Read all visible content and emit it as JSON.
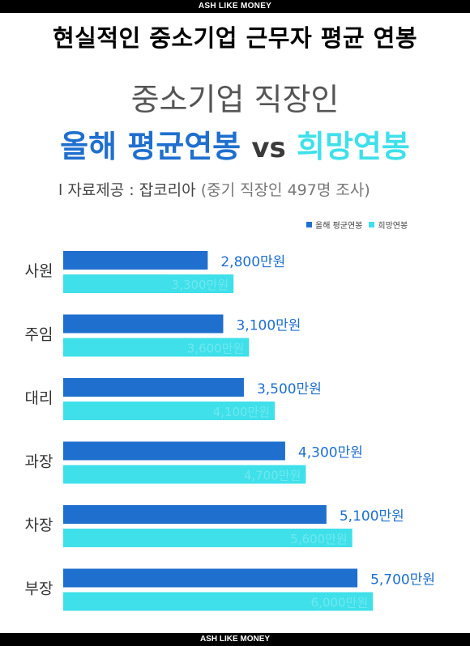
{
  "header": {
    "banner_top": "ASH LIKE MONEY",
    "headline": "현실적인 중소기업 근무자 평균 연봉"
  },
  "titles": {
    "line1": "중소기업 직장인",
    "line2_part1": "올해 평균연봉",
    "line2_vs": "vs",
    "line2_part2": "희망연봉",
    "source_main": "l 자료제공 : 잡코리아",
    "source_sub": "(중기 직장인 497명 조사)"
  },
  "colors": {
    "current": "#1f6fce",
    "hoped": "#3fe0ea",
    "current_label": "#1f6fce",
    "hoped_label": "#35d6e4"
  },
  "chart_data": {
    "type": "bar",
    "orientation": "horizontal",
    "categories": [
      "사원",
      "주임",
      "대리",
      "과장",
      "차장",
      "부장"
    ],
    "unit": "만원",
    "series": [
      {
        "name": "올해 평균연봉",
        "values": [
          2800,
          3100,
          3500,
          4300,
          5100,
          5700
        ],
        "labels": [
          "2,800만원",
          "3,100만원",
          "3,500만원",
          "4,300만원",
          "5,100만원",
          "5,700만원"
        ]
      },
      {
        "name": "희망연봉",
        "values": [
          3300,
          3600,
          4100,
          4700,
          5600,
          6000
        ],
        "labels": [
          "3,300만원",
          "3,600만원",
          "4,100만원",
          "4,700만원",
          "5,600만원",
          "6,000만원"
        ]
      }
    ],
    "legend_position": "top-right"
  },
  "footer": {
    "banner_bottom": "ASH LIKE MONEY"
  }
}
